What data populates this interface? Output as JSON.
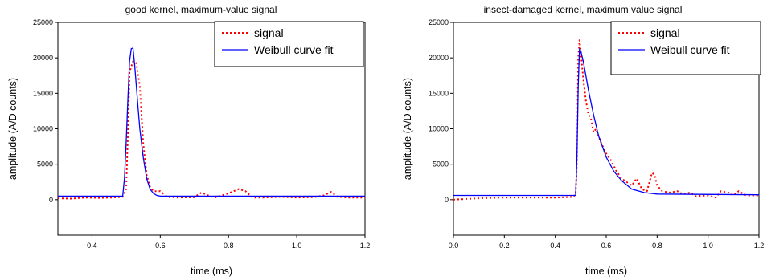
{
  "chart_data": [
    {
      "type": "line",
      "title": "good kernel, maximum-value signal",
      "xlabel": "time (ms)",
      "ylabel": "amplitude (A/D counts)",
      "xlim": [
        0.3,
        1.2
      ],
      "ylim": [
        -5000,
        25000
      ],
      "xticks": [
        0.4,
        0.6,
        0.8,
        1.0,
        1.2
      ],
      "xtick_labels": [
        "0.4",
        "0.6",
        "0.8",
        "1.0",
        "1.2"
      ],
      "yticks": [
        0,
        5000,
        10000,
        15000,
        20000,
        25000
      ],
      "ytick_labels": [
        "0",
        "5000",
        "10000",
        "15000",
        "20000",
        "25000"
      ],
      "grid": false,
      "legend_position": "top-right",
      "series": [
        {
          "name": "signal",
          "color": "#ff0000",
          "style": "dotted",
          "x": [
            0.3,
            0.34,
            0.38,
            0.42,
            0.46,
            0.49,
            0.5,
            0.505,
            0.51,
            0.52,
            0.525,
            0.53,
            0.54,
            0.55,
            0.56,
            0.57,
            0.58,
            0.6,
            0.62,
            0.65,
            0.7,
            0.72,
            0.74,
            0.76,
            0.8,
            0.83,
            0.85,
            0.87,
            0.9,
            0.95,
            1.0,
            1.05,
            1.08,
            1.1,
            1.12,
            1.15,
            1.2
          ],
          "y": [
            200,
            150,
            300,
            250,
            300,
            400,
            1500,
            9000,
            18000,
            19500,
            19500,
            19200,
            16000,
            8000,
            3500,
            1800,
            1200,
            1200,
            400,
            300,
            350,
            1000,
            600,
            300,
            900,
            1500,
            1200,
            300,
            300,
            400,
            300,
            350,
            600,
            1100,
            400,
            300,
            300
          ]
        },
        {
          "name": "Weibull curve fit",
          "color": "#0000ff",
          "style": "solid",
          "x": [
            0.3,
            0.49,
            0.495,
            0.5,
            0.505,
            0.51,
            0.515,
            0.52,
            0.525,
            0.53,
            0.535,
            0.54,
            0.55,
            0.56,
            0.57,
            0.58,
            0.59,
            0.6,
            0.62,
            0.7,
            1.2
          ],
          "y": [
            500,
            500,
            3000,
            8000,
            14000,
            19500,
            21300,
            21400,
            19000,
            16000,
            13000,
            10000,
            6000,
            3000,
            1500,
            900,
            600,
            500,
            500,
            500,
            500
          ]
        }
      ]
    },
    {
      "type": "line",
      "title": "insect-damaged kernel, maximum value signal",
      "xlabel": "time (ms)",
      "ylabel": "amplitude (A/D counts)",
      "xlim": [
        0.0,
        1.2
      ],
      "ylim": [
        -5000,
        25000
      ],
      "xticks": [
        0.0,
        0.2,
        0.4,
        0.6,
        0.8,
        1.0,
        1.2
      ],
      "xtick_labels": [
        "0.0",
        "0.2",
        "0.4",
        "0.6",
        "0.8",
        "1.0",
        "1.2"
      ],
      "yticks": [
        0,
        5000,
        10000,
        15000,
        20000,
        25000
      ],
      "ytick_labels": [
        "0",
        "5000",
        "10000",
        "15000",
        "20000",
        "25000"
      ],
      "grid": false,
      "legend_position": "top-right",
      "series": [
        {
          "name": "signal",
          "color": "#ff0000",
          "style": "dotted",
          "x": [
            0.0,
            0.05,
            0.1,
            0.2,
            0.3,
            0.4,
            0.47,
            0.48,
            0.485,
            0.49,
            0.495,
            0.5,
            0.51,
            0.52,
            0.53,
            0.54,
            0.55,
            0.56,
            0.58,
            0.6,
            0.62,
            0.64,
            0.66,
            0.68,
            0.7,
            0.72,
            0.74,
            0.76,
            0.77,
            0.78,
            0.79,
            0.8,
            0.82,
            0.85,
            0.88,
            0.9,
            0.93,
            0.95,
            1.0,
            1.03,
            1.05,
            1.08,
            1.1,
            1.12,
            1.15,
            1.2
          ],
          "y": [
            0,
            100,
            200,
            300,
            300,
            300,
            400,
            800,
            5000,
            20000,
            22500,
            21000,
            17000,
            14000,
            12000,
            11500,
            9500,
            10000,
            8000,
            6500,
            5500,
            4000,
            3000,
            2500,
            2000,
            3000,
            1500,
            1200,
            2500,
            3800,
            3500,
            2000,
            1200,
            1000,
            1200,
            800,
            1000,
            500,
            600,
            300,
            1200,
            1000,
            600,
            1200,
            600,
            600
          ]
        },
        {
          "name": "Weibull curve fit",
          "color": "#0000ff",
          "style": "solid",
          "x": [
            0.0,
            0.47,
            0.48,
            0.485,
            0.49,
            0.495,
            0.5,
            0.51,
            0.52,
            0.53,
            0.55,
            0.57,
            0.6,
            0.63,
            0.66,
            0.7,
            0.75,
            0.8,
            1.2
          ],
          "y": [
            600,
            600,
            600,
            6000,
            16000,
            21300,
            21000,
            19500,
            17500,
            15500,
            12000,
            9000,
            6000,
            4000,
            2700,
            1500,
            1000,
            800,
            700
          ]
        }
      ]
    }
  ]
}
